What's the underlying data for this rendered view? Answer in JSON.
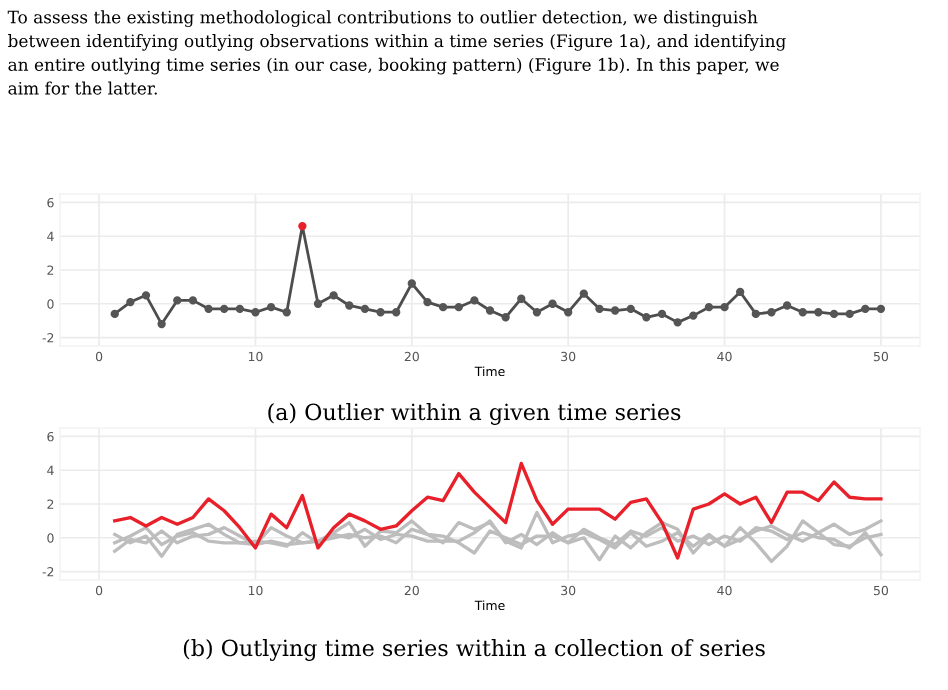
{
  "chart_data": [
    {
      "type": "line",
      "annotations": [
        "To assess the existing methodological contributions to outlier detection, we distinguish\nbetween identifying outlying observations within a time series (Figure 1a), and identifying\nan entire outlying time series (in our case, booking pattern) (Figure 1b). In this paper, we\naim for the latter.",
        "(a) Outlier within a given time series"
      ],
      "xlabel": "Time",
      "x": [
        1,
        2,
        3,
        4,
        5,
        6,
        7,
        8,
        9,
        10,
        11,
        12,
        13,
        14,
        15,
        16,
        17,
        18,
        19,
        20,
        21,
        22,
        23,
        24,
        25,
        26,
        27,
        28,
        29,
        30,
        31,
        32,
        33,
        34,
        35,
        36,
        37,
        38,
        39,
        40,
        41,
        42,
        43,
        44,
        45,
        46,
        47,
        48,
        49,
        50
      ],
      "series": [
        {
          "color": "#4d4d4d",
          "colors": [
            "#555555",
            "#555555",
            "#555555",
            "#555555",
            "#555555",
            "#555555",
            "#555555",
            "#555555",
            "#555555",
            "#555555",
            "#555555",
            "#555555",
            "#e8202a",
            "#555555",
            "#555555",
            "#555555",
            "#555555",
            "#555555",
            "#555555",
            "#555555",
            "#555555",
            "#555555",
            "#555555",
            "#555555",
            "#555555",
            "#555555",
            "#555555",
            "#555555",
            "#555555",
            "#555555",
            "#555555",
            "#555555",
            "#555555",
            "#555555",
            "#555555",
            "#555555",
            "#555555",
            "#555555",
            "#555555",
            "#555555",
            "#555555",
            "#555555",
            "#555555",
            "#555555",
            "#555555",
            "#555555",
            "#555555",
            "#555555",
            "#555555",
            "#555555"
          ],
          "values": [
            -0.6,
            0.1,
            0.5,
            -1.2,
            0.2,
            0.2,
            -0.3,
            -0.3,
            -0.3,
            -0.5,
            -0.2,
            -0.5,
            4.6,
            0.0,
            0.5,
            -0.1,
            -0.3,
            -0.5,
            -0.5,
            1.2,
            0.1,
            -0.2,
            -0.2,
            0.2,
            -0.4,
            -0.8,
            0.3,
            -0.5,
            0.0,
            -0.5,
            0.6,
            -0.3,
            -0.4,
            -0.3,
            -0.8,
            -0.6,
            -1.1,
            -0.7,
            -0.2,
            -0.2,
            0.7,
            -0.6,
            -0.5,
            -0.1,
            -0.5,
            -0.5,
            -0.6,
            -0.6,
            -0.3,
            -0.3
          ]
        }
      ],
      "marker": "circle",
      "xlim": [
        -2.5,
        52.5
      ],
      "ylim": [
        -2.5,
        6.5
      ],
      "xticks": [
        0,
        10,
        20,
        30,
        40,
        50
      ],
      "yticks": [
        -2,
        0,
        2,
        4,
        6
      ],
      "grid": true
    },
    {
      "type": "line",
      "annotations": [
        "(b) Outlying time series within a collection of series"
      ],
      "xlabel": "Time",
      "x": [
        1,
        2,
        3,
        4,
        5,
        6,
        7,
        8,
        9,
        10,
        11,
        12,
        13,
        14,
        15,
        16,
        17,
        18,
        19,
        20,
        21,
        22,
        23,
        24,
        25,
        26,
        27,
        28,
        29,
        30,
        31,
        32,
        33,
        34,
        35,
        36,
        37,
        38,
        39,
        40,
        41,
        42,
        43,
        44,
        45,
        46,
        47,
        48,
        49,
        50
      ],
      "series": [
        {
          "color": "#bdbdbd",
          "values": [
            0.2,
            -0.3,
            0.1,
            -1.1,
            0.2,
            0.5,
            0.8,
            0.2,
            -0.3,
            -0.4,
            -0.2,
            -0.4,
            -0.3,
            -0.2,
            0.3,
            0.9,
            -0.5,
            0.4,
            0.3,
            1.0,
            0.2,
            -0.3,
            0.9,
            0.5,
            0.9,
            -0.2,
            -0.6,
            1.5,
            -0.3,
            0.1,
            0.3,
            -0.1,
            -0.6,
            0.3,
            -0.5,
            -0.2,
            0.3,
            -0.5,
            0.2,
            -0.5,
            0.6,
            -0.3,
            -1.4,
            -0.5,
            1.0,
            0.3,
            0.8,
            0.2,
            0.5,
            1.0
          ]
        },
        {
          "color": "#bdbdbd",
          "values": [
            -0.3,
            0.1,
            0.6,
            -0.4,
            0.1,
            0.3,
            -0.2,
            -0.3,
            -0.3,
            -0.2,
            -0.3,
            -0.5,
            0.3,
            -0.3,
            0.2,
            0.0,
            0.5,
            -0.1,
            0.2,
            0.1,
            -0.2,
            -0.2,
            -0.2,
            0.3,
            1.0,
            -0.3,
            0.2,
            -0.4,
            0.3,
            -0.3,
            0.5,
            0.0,
            -0.4,
            0.4,
            0.1,
            0.6,
            -0.2,
            0.1,
            -0.4,
            0.1,
            -0.2,
            0.6,
            0.4,
            -0.1,
            0.3,
            0.0,
            -0.1,
            -0.6,
            0.3,
            -1.0
          ]
        },
        {
          "color": "#bdbdbd",
          "values": [
            -0.8,
            -0.1,
            -0.3,
            0.4,
            -0.3,
            0.1,
            0.2,
            0.6,
            0.1,
            -0.4,
            0.6,
            0.1,
            -0.3,
            -0.2,
            0.0,
            0.2,
            0.0,
            0.1,
            -0.3,
            0.5,
            0.2,
            0.1,
            -0.3,
            -0.9,
            0.4,
            0.0,
            -0.4,
            0.1,
            0.1,
            -0.3,
            0.0,
            -1.3,
            0.1,
            -0.6,
            0.3,
            0.9,
            0.5,
            -0.9,
            0.1,
            -0.5,
            -0.1,
            0.4,
            0.7,
            0.2,
            -0.2,
            0.3,
            -0.4,
            -0.5,
            0.0,
            0.2
          ]
        },
        {
          "color": "#e8202a",
          "values": [
            1.0,
            1.2,
            0.7,
            1.2,
            0.8,
            1.2,
            2.3,
            1.6,
            0.6,
            -0.6,
            1.4,
            0.6,
            2.5,
            -0.6,
            0.6,
            1.4,
            1.0,
            0.5,
            0.7,
            1.6,
            2.4,
            2.2,
            3.8,
            2.7,
            1.8,
            0.9,
            4.4,
            2.2,
            0.8,
            1.7,
            1.7,
            1.7,
            1.1,
            2.1,
            2.3,
            0.9,
            -1.2,
            1.7,
            2.0,
            2.6,
            2.0,
            2.4,
            0.9,
            2.7,
            2.7,
            2.2,
            3.3,
            2.4,
            2.3,
            2.3
          ]
        }
      ],
      "marker": "none",
      "xlim": [
        -2.5,
        52.5
      ],
      "ylim": [
        -2.5,
        6.5
      ],
      "xticks": [
        0,
        10,
        20,
        30,
        40,
        50
      ],
      "yticks": [
        -2,
        0,
        2,
        4,
        6
      ],
      "grid": true
    }
  ]
}
